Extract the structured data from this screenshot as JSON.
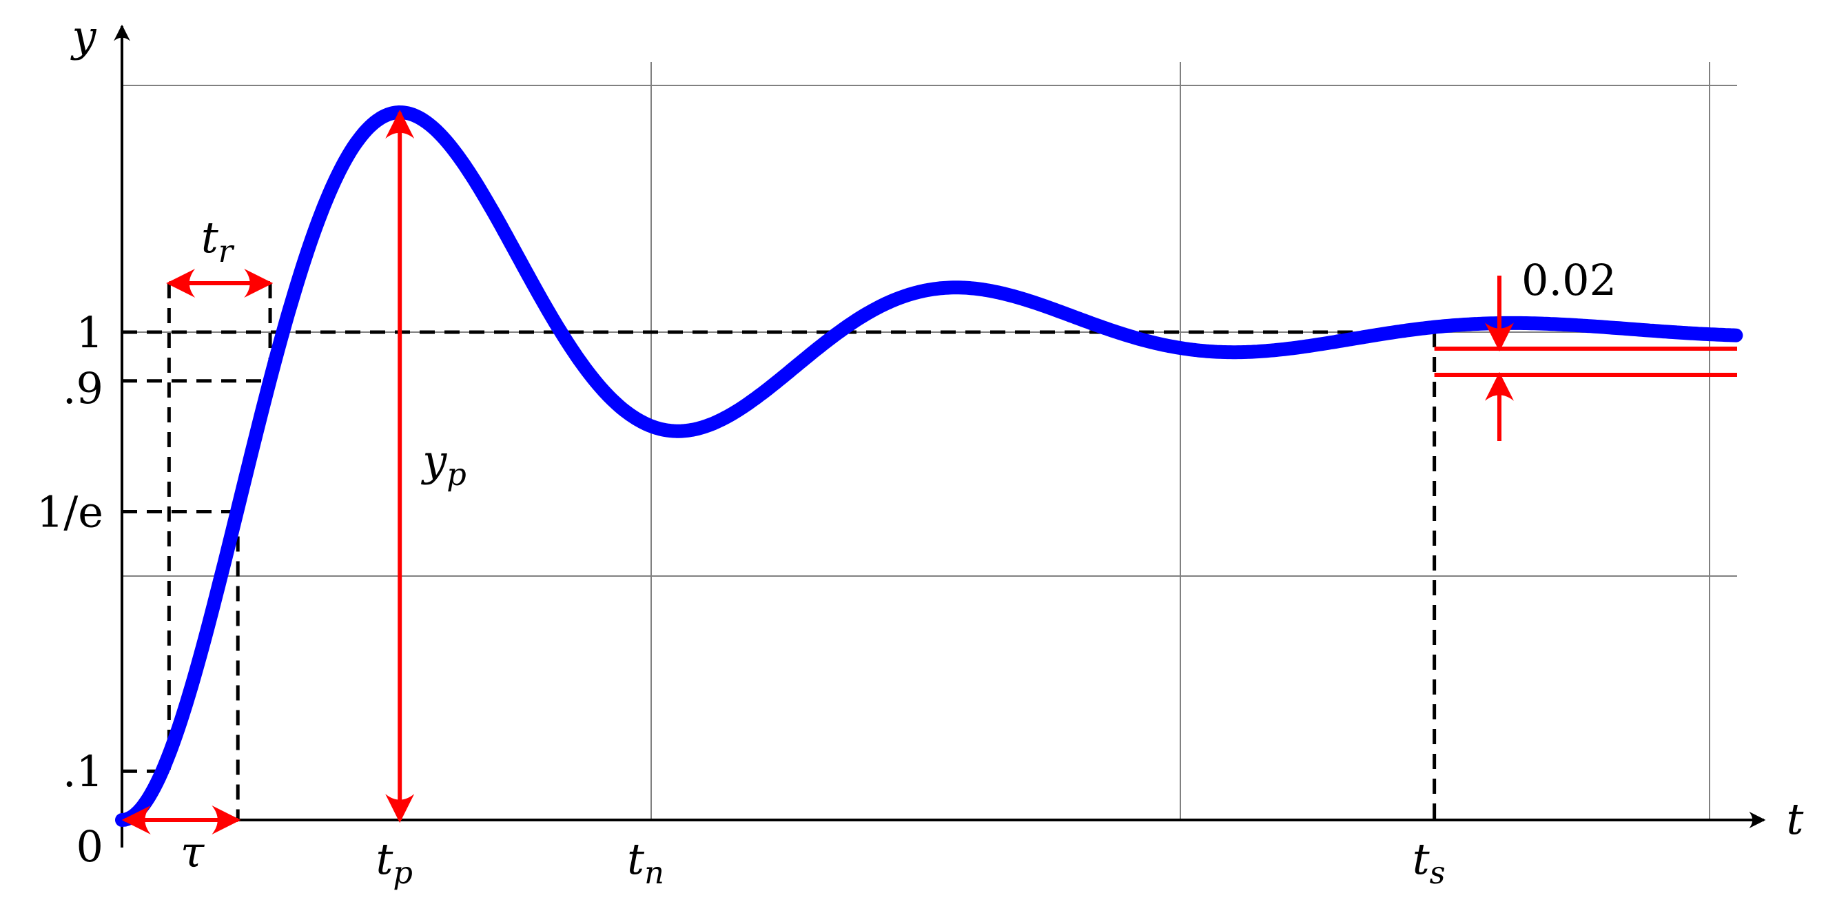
{
  "axes": {
    "x_label": "t",
    "y_label": "y",
    "xlim": [
      0,
      3.1
    ],
    "ylim": [
      0,
      1.55
    ]
  },
  "grid": {
    "x": [
      1,
      2,
      3
    ],
    "y": [
      0.5,
      1,
      1.5
    ],
    "color": "#808080"
  },
  "y_ticks": [
    {
      "value": 0,
      "label": "0"
    },
    {
      "value": 0.1,
      "label": ".1"
    },
    {
      "value": 0.632,
      "label": "1/e"
    },
    {
      "value": 0.9,
      "label": ".9"
    },
    {
      "value": 1,
      "label": "1"
    }
  ],
  "x_ticks": [
    {
      "value": 0.525,
      "label": "t",
      "sub": "p"
    },
    {
      "value": 1.0,
      "label": "t",
      "sub": "n"
    },
    {
      "value": 2.48,
      "label": "t",
      "sub": "s"
    }
  ],
  "curve": {
    "zeta": 0.246,
    "omega_n": 6.17,
    "t_end": 3.05,
    "color": "#0000ff"
  },
  "annotations": {
    "tau": {
      "label": "τ",
      "t": 0.219
    },
    "rise": {
      "label": "t",
      "sub": "r",
      "t_start": 0.089,
      "t_end": 0.28
    },
    "peak": {
      "label": "y",
      "sub": "p",
      "t": 0.525,
      "y": 1.45
    },
    "settling": {
      "label": "0.02",
      "t": 2.48
    },
    "color": "#ff0000"
  }
}
